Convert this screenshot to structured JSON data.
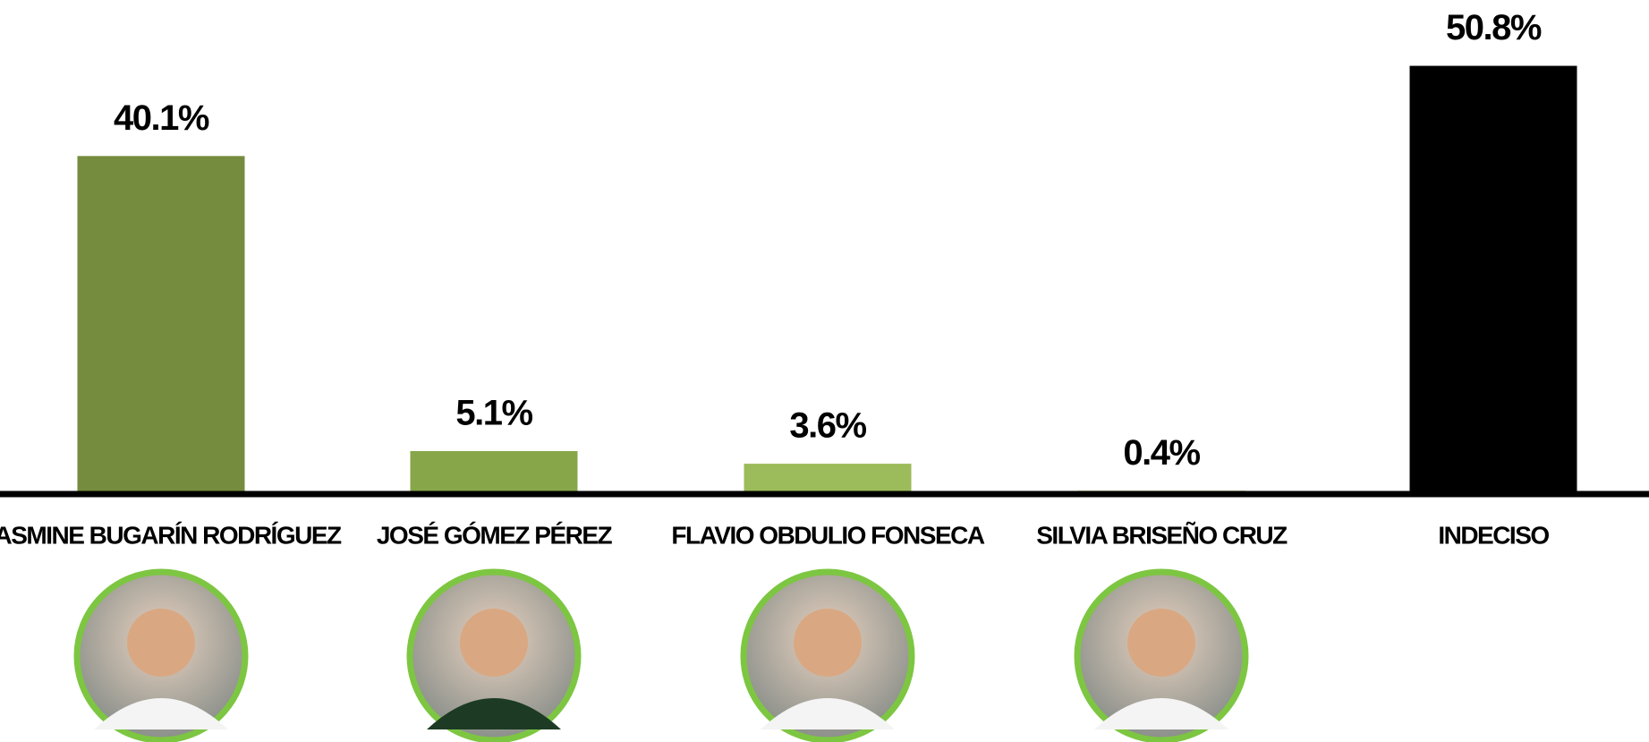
{
  "chart_data": {
    "type": "bar",
    "categories": [
      "JASMINE BUGARÍN RODRÍGUEZ",
      "JOSÉ GÓMEZ PÉREZ",
      "FLAVIO OBDULIO FONSECA",
      "SILVIA BRISEÑO CRUZ",
      "INDECISO"
    ],
    "values": [
      40.1,
      5.1,
      3.6,
      0.4,
      50.8
    ],
    "value_labels": [
      "40.1%",
      "5.1%",
      "3.6%",
      "0.4%",
      "50.8%"
    ],
    "colors": [
      "#758c3e",
      "#87a64a",
      "#9cbb5a",
      "#a9c96a",
      "#000000"
    ],
    "photos": [
      true,
      true,
      true,
      true,
      false
    ],
    "ylim": [
      0,
      55
    ]
  }
}
